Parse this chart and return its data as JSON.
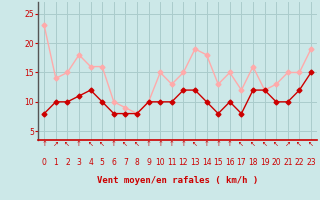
{
  "x": [
    0,
    1,
    2,
    3,
    4,
    5,
    6,
    7,
    8,
    9,
    10,
    11,
    12,
    13,
    14,
    15,
    16,
    17,
    18,
    19,
    20,
    21,
    22,
    23
  ],
  "vent_moyen": [
    8,
    10,
    10,
    11,
    12,
    10,
    8,
    8,
    8,
    10,
    10,
    10,
    12,
    12,
    10,
    8,
    10,
    8,
    12,
    12,
    10,
    10,
    12,
    15
  ],
  "en_rafales": [
    23,
    14,
    15,
    18,
    16,
    16,
    10,
    9,
    8,
    10,
    15,
    13,
    15,
    19,
    18,
    13,
    15,
    12,
    16,
    12,
    13,
    15,
    15,
    19
  ],
  "color_moyen": "#cc0000",
  "color_rafales": "#ffaaaa",
  "background_color": "#cce8e8",
  "grid_color": "#aacccc",
  "xlabel": "Vent moyen/en rafales ( km/h )",
  "xlabel_color": "#cc0000",
  "ytick_labels": [
    "5",
    "10",
    "15",
    "20",
    "25"
  ],
  "ytick_vals": [
    5,
    10,
    15,
    20,
    25
  ],
  "ylim": [
    3.5,
    27
  ],
  "xlim": [
    -0.5,
    23.5
  ],
  "marker": "D",
  "marker_size": 2.5,
  "line_width": 1.0,
  "tick_color": "#cc0000",
  "tick_fontsize": 5.5,
  "xlabel_fontsize": 6.5,
  "arrow_symbols": [
    "↑",
    "↗",
    "↖",
    "↑",
    "↖",
    "↖",
    "↑",
    "↖",
    "↖",
    "↑",
    "↑",
    "↑",
    "↑",
    "↖",
    "↑",
    "↑",
    "↑",
    "↖",
    "↖",
    "↖",
    "↖",
    "↗",
    "↖",
    "↖"
  ],
  "xlabels": [
    "0",
    "1",
    "2",
    "3",
    "4",
    "5",
    "6",
    "7",
    "8",
    "9",
    "10",
    "11",
    "12",
    "13",
    "14",
    "15",
    "16",
    "17",
    "18",
    "19",
    "20",
    "21",
    "22",
    "23"
  ]
}
